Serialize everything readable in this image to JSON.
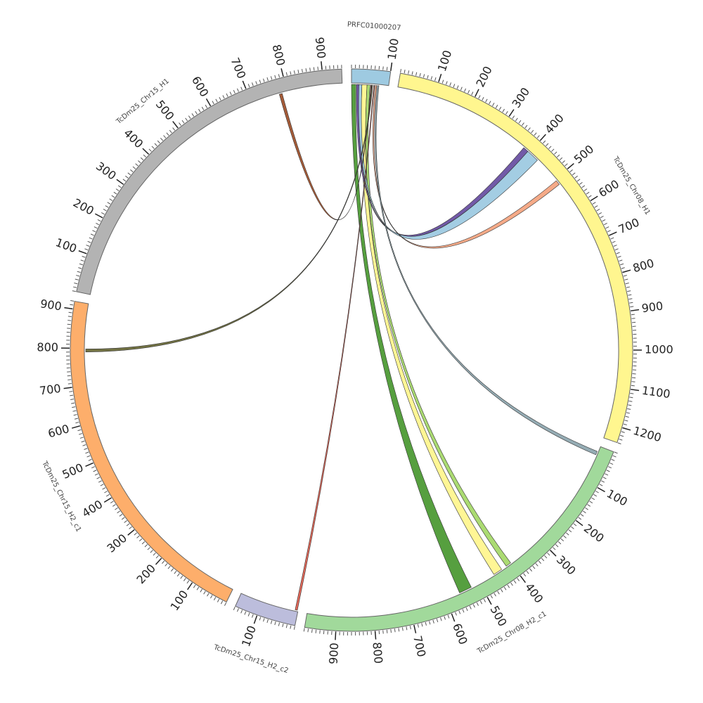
{
  "chart_data": {
    "type": "chord",
    "segments": [
      {
        "name": "PRFC01000207",
        "length": 100,
        "color": "#9ecae1",
        "ticks": [
          100
        ]
      },
      {
        "name": "TcDm25_Chr08_H1",
        "length": 1240,
        "color": "#fff68f",
        "ticks": [
          100,
          200,
          300,
          400,
          500,
          600,
          700,
          800,
          900,
          1000,
          1100,
          1200
        ]
      },
      {
        "name": "TcDm25_Chr08_H2_c1",
        "length": 980,
        "color": "#a1d99b",
        "ticks": [
          100,
          200,
          300,
          400,
          500,
          600,
          700,
          800,
          900
        ]
      },
      {
        "name": "TcDm25_Chr15_H2_c2",
        "length": 160,
        "color": "#bcbddc",
        "ticks": [
          100
        ]
      },
      {
        "name": "TcDm25_Chr15_H2_c1",
        "length": 920,
        "color": "#fdae6b",
        "ticks": [
          100,
          200,
          300,
          400,
          500,
          600,
          700,
          800,
          900
        ]
      },
      {
        "name": "TcDm25_Chr15_H1",
        "length": 950,
        "color": "#b3b3b3",
        "ticks": [
          100,
          200,
          300,
          400,
          500,
          600,
          700,
          800,
          900
        ]
      }
    ],
    "minor_tick_step": 10,
    "links": [
      {
        "source": {
          "segment": 0,
          "start": 0,
          "end": 12
        },
        "target": {
          "segment": 2,
          "start": 525,
          "end": 560
        },
        "color": "#4d9a35"
      },
      {
        "source": {
          "segment": 0,
          "start": 28,
          "end": 42
        },
        "target": {
          "segment": 2,
          "start": 430,
          "end": 455
        },
        "color": "#fff68f"
      },
      {
        "source": {
          "segment": 0,
          "start": 42,
          "end": 50
        },
        "target": {
          "segment": 2,
          "start": 400,
          "end": 415
        },
        "color": "#a6d96a"
      },
      {
        "source": {
          "segment": 0,
          "start": 14,
          "end": 20
        },
        "target": {
          "segment": 1,
          "start": 380,
          "end": 395
        },
        "color": "#6a51a3"
      },
      {
        "source": {
          "segment": 0,
          "start": 20,
          "end": 28
        },
        "target": {
          "segment": 1,
          "start": 395,
          "end": 430
        },
        "color": "#9ecae1"
      },
      {
        "source": {
          "segment": 0,
          "start": 64,
          "end": 68
        },
        "target": {
          "segment": 1,
          "start": 505,
          "end": 518
        },
        "color": "#f4a582"
      },
      {
        "source": {
          "segment": 0,
          "start": 70,
          "end": 74
        },
        "target": {
          "segment": 2,
          "start": 15,
          "end": 25
        },
        "color": "#8fa8b0"
      },
      {
        "source": {
          "segment": 0,
          "start": 52,
          "end": 54
        },
        "target": {
          "segment": 5,
          "start": 778,
          "end": 786
        },
        "color": "#a0522d"
      },
      {
        "source": {
          "segment": 0,
          "start": 55,
          "end": 57
        },
        "target": {
          "segment": 4,
          "start": 790,
          "end": 798
        },
        "color": "#6b6b3a"
      },
      {
        "source": {
          "segment": 0,
          "start": 60,
          "end": 62
        },
        "target": {
          "segment": 3,
          "start": 2,
          "end": 8
        },
        "color": "#e06050"
      }
    ]
  }
}
